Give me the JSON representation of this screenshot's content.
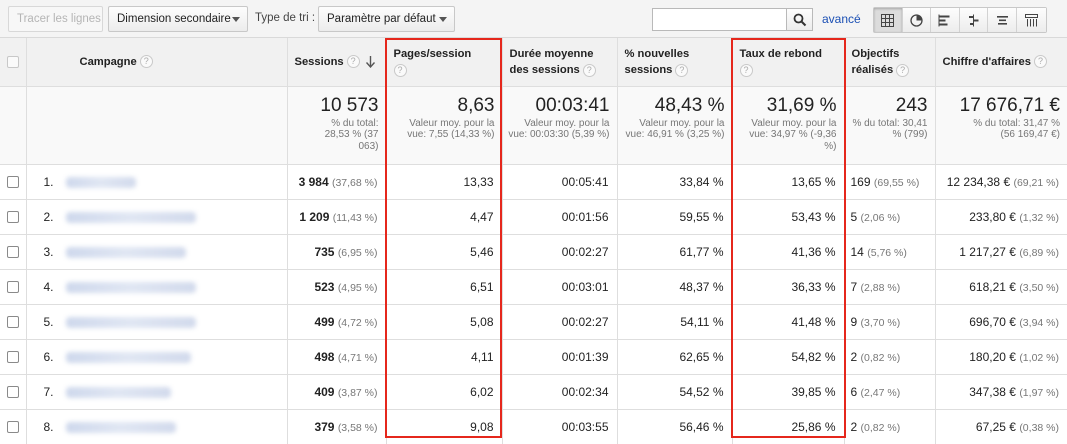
{
  "toolbar": {
    "plot_rows_label": "Tracer les lignes",
    "secondary_dimension_label": "Dimension secondaire",
    "sort_type_label": "Type de tri :",
    "sort_type_value": "Paramètre par défaut",
    "search_value": "",
    "advanced_label": "avancé",
    "view_icons": [
      "table-view-icon",
      "pie-view-icon",
      "performance-view-icon",
      "comparison-view-icon",
      "term-cloud-view-icon",
      "pivot-view-icon"
    ]
  },
  "columns": {
    "campaign": "Campagne",
    "sessions": "Sessions",
    "pages_session": "Pages/session",
    "avg_duration": "Durée moyenne des sessions",
    "new_sessions": "% nouvelles sessions",
    "bounce_rate": "Taux de rebond",
    "goals": "Objectifs réalisés",
    "revenue": "Chiffre d'affaires",
    "help_glyph": "?"
  },
  "totals": {
    "sessions": {
      "main": "10 573",
      "sub": "% du total: 28,53 % (37 063)"
    },
    "pages_session": {
      "main": "8,63",
      "sub": "Valeur moy. pour la vue: 7,55 (14,33 %)"
    },
    "avg_duration": {
      "main": "00:03:41",
      "sub": "Valeur moy. pour la vue: 00:03:30 (5,39 %)"
    },
    "new_sessions": {
      "main": "48,43 %",
      "sub": "Valeur moy. pour la vue: 46,91 % (3,25 %)"
    },
    "bounce_rate": {
      "main": "31,69 %",
      "sub": "Valeur moy. pour la vue: 34,97 % (-9,36 %)"
    },
    "goals": {
      "main": "243",
      "sub": "% du total: 30,41 % (799)"
    },
    "revenue": {
      "main": "17 676,71 €",
      "sub": "% du total: 31,47 % (56 169,47 €)"
    }
  },
  "rows": [
    {
      "rank": "1.",
      "sessions": "3 984",
      "sessions_pct": "(37,68 %)",
      "pages": "13,33",
      "duration": "00:05:41",
      "new": "33,84 %",
      "bounce": "13,65 %",
      "goals": "169",
      "goals_pct": "(69,55 %)",
      "revenue": "12 234,38 €",
      "revenue_pct": "(69,21 %)"
    },
    {
      "rank": "2.",
      "sessions": "1 209",
      "sessions_pct": "(11,43 %)",
      "pages": "4,47",
      "duration": "00:01:56",
      "new": "59,55 %",
      "bounce": "53,43 %",
      "goals": "5",
      "goals_pct": "(2,06 %)",
      "revenue": "233,80 €",
      "revenue_pct": "(1,32 %)"
    },
    {
      "rank": "3.",
      "sessions": "735",
      "sessions_pct": "(6,95 %)",
      "pages": "5,46",
      "duration": "00:02:27",
      "new": "61,77 %",
      "bounce": "41,36 %",
      "goals": "14",
      "goals_pct": "(5,76 %)",
      "revenue": "1 217,27 €",
      "revenue_pct": "(6,89 %)"
    },
    {
      "rank": "4.",
      "sessions": "523",
      "sessions_pct": "(4,95 %)",
      "pages": "6,51",
      "duration": "00:03:01",
      "new": "48,37 %",
      "bounce": "36,33 %",
      "goals": "7",
      "goals_pct": "(2,88 %)",
      "revenue": "618,21 €",
      "revenue_pct": "(3,50 %)"
    },
    {
      "rank": "5.",
      "sessions": "499",
      "sessions_pct": "(4,72 %)",
      "pages": "5,08",
      "duration": "00:02:27",
      "new": "54,11 %",
      "bounce": "41,48 %",
      "goals": "9",
      "goals_pct": "(3,70 %)",
      "revenue": "696,70 €",
      "revenue_pct": "(3,94 %)"
    },
    {
      "rank": "6.",
      "sessions": "498",
      "sessions_pct": "(4,71 %)",
      "pages": "4,11",
      "duration": "00:01:39",
      "new": "62,65 %",
      "bounce": "54,82 %",
      "goals": "2",
      "goals_pct": "(0,82 %)",
      "revenue": "180,20 €",
      "revenue_pct": "(1,02 %)"
    },
    {
      "rank": "7.",
      "sessions": "409",
      "sessions_pct": "(3,87 %)",
      "pages": "6,02",
      "duration": "00:02:34",
      "new": "54,52 %",
      "bounce": "39,85 %",
      "goals": "6",
      "goals_pct": "(2,47 %)",
      "revenue": "347,38 €",
      "revenue_pct": "(1,97 %)"
    },
    {
      "rank": "8.",
      "sessions": "379",
      "sessions_pct": "(3,58 %)",
      "pages": "9,08",
      "duration": "00:03:55",
      "new": "56,46 %",
      "bounce": "25,86 %",
      "goals": "2",
      "goals_pct": "(0,82 %)",
      "revenue": "67,25 €",
      "revenue_pct": "(0,38 %)"
    }
  ],
  "colors": {
    "highlight": "#e5271c",
    "link": "#1a4fb4"
  }
}
